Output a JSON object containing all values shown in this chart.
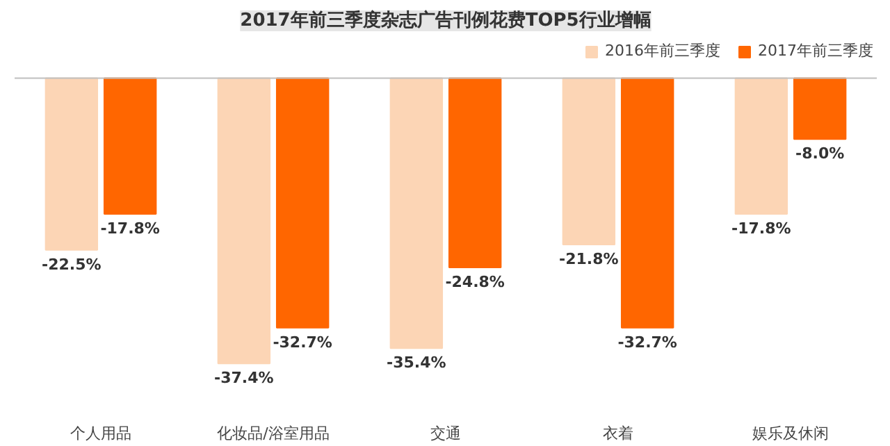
{
  "chart_data": {
    "type": "bar",
    "title": "2017年前三季度杂志广告刊例花费TOP5行业增幅",
    "categories": [
      "个人用品",
      "化妆品/浴室用品",
      "交通",
      "衣着",
      "娱乐及休闲"
    ],
    "series": [
      {
        "name": "2016年前三季度",
        "color": "#fcd5b5",
        "values": [
          -22.5,
          -37.4,
          -35.4,
          -21.8,
          -17.8
        ],
        "value_labels": [
          "-22.5%",
          "-37.4%",
          "-35.4%",
          "-21.8%",
          "-17.8%"
        ]
      },
      {
        "name": "2017年前三季度",
        "color": "#ff6600",
        "values": [
          -17.8,
          -32.7,
          -24.8,
          -32.7,
          -8.0
        ],
        "value_labels": [
          "-17.8%",
          "-32.7%",
          "-24.8%",
          "-32.7%",
          "-8.0%"
        ]
      }
    ],
    "legend": "top right"
  }
}
